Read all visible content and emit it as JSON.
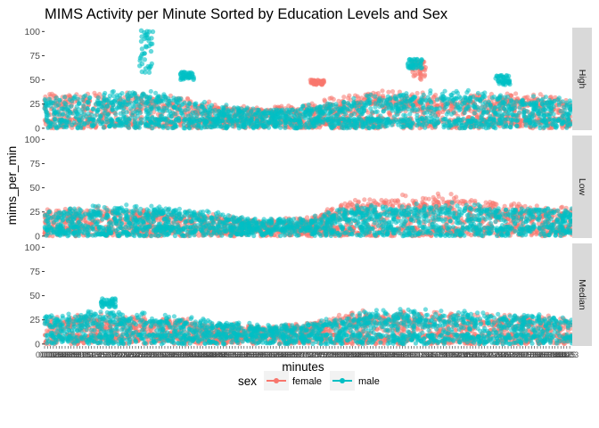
{
  "chart_data": {
    "type": "scatter",
    "title": "MIMS Activity per Minute Sorted by Education Levels and Sex",
    "xlabel": "minutes",
    "ylabel": "mims_per_min",
    "ylim": [
      -2,
      104
    ],
    "yticks": [
      0,
      25,
      50,
      75,
      100
    ],
    "ytick_labels": [
      "0",
      "25",
      "50",
      "75",
      "100"
    ],
    "x_range": [
      1,
      1440
    ],
    "facets": [
      "High",
      "Low",
      "Median"
    ],
    "legend": {
      "title": "sex",
      "position": "bottom",
      "entries": [
        {
          "label": "female",
          "color": "#F8766D"
        },
        {
          "label": "male",
          "color": "#00BFC4"
        }
      ]
    },
    "series": [
      {
        "name": "female",
        "color": "#F8766D",
        "facet_profiles": {
          "High": {
            "x": [
              1,
              120,
              240,
              360,
              480,
              600,
              720,
              840,
              960,
              1080,
              1200,
              1320,
              1440
            ],
            "band_max": [
              32,
              34,
              33,
              30,
              22,
              20,
              24,
              32,
              36,
              30,
              32,
              32,
              30
            ]
          },
          "Low": {
            "x": [
              1,
              120,
              240,
              360,
              480,
              600,
              720,
              840,
              960,
              1080,
              1200,
              1320,
              1440
            ],
            "band_max": [
              26,
              28,
              26,
              24,
              20,
              15,
              18,
              34,
              38,
              40,
              34,
              30,
              28
            ]
          },
          "Median": {
            "x": [
              1,
              120,
              240,
              360,
              480,
              600,
              720,
              840,
              960,
              1080,
              1200,
              1320,
              1440
            ],
            "band_max": [
              26,
              28,
              26,
              24,
              20,
              16,
              20,
              30,
              32,
              30,
              28,
              26,
              26
            ]
          }
        },
        "clusters": [
          {
            "facet": "High",
            "x": 745,
            "y": [
              45,
              50
            ]
          },
          {
            "facet": "High",
            "x": 1020,
            "y": [
              50,
              70
            ]
          }
        ]
      },
      {
        "name": "male",
        "color": "#00BFC4",
        "facet_profiles": {
          "High": {
            "x": [
              1,
              120,
              240,
              360,
              480,
              600,
              720,
              840,
              960,
              1080,
              1200,
              1320,
              1440
            ],
            "band_max": [
              28,
              30,
              38,
              30,
              22,
              18,
              22,
              28,
              34,
              38,
              34,
              30,
              28
            ]
          },
          "Low": {
            "x": [
              1,
              120,
              240,
              360,
              480,
              600,
              720,
              840,
              960,
              1080,
              1200,
              1320,
              1440
            ],
            "band_max": [
              24,
              28,
              30,
              26,
              22,
              16,
              18,
              28,
              30,
              32,
              30,
              28,
              26
            ]
          },
          "Median": {
            "x": [
              1,
              120,
              240,
              360,
              480,
              600,
              720,
              840,
              960,
              1080,
              1200,
              1320,
              1440
            ],
            "band_max": [
              28,
              32,
              30,
              26,
              22,
              18,
              20,
              28,
              34,
              32,
              30,
              28,
              26
            ]
          }
        },
        "clusters": [
          {
            "facet": "High",
            "x": 280,
            "y": [
              55,
              103
            ]
          },
          {
            "facet": "High",
            "x": 390,
            "y": [
              50,
              58
            ]
          },
          {
            "facet": "High",
            "x": 1010,
            "y": [
              62,
              72
            ]
          },
          {
            "facet": "High",
            "x": 1250,
            "y": [
              45,
              55
            ]
          },
          {
            "facet": "Median",
            "x": 175,
            "y": [
              38,
              47
            ]
          }
        ]
      }
    ]
  }
}
